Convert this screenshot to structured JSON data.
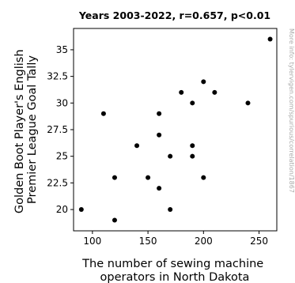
{
  "chart_data": {
    "type": "scatter",
    "title": "Years 2003-2022, r=0.657, p<0.01",
    "xlabel_lines": [
      "The number of sewing machine",
      "operators in North Dakota"
    ],
    "ylabel_lines": [
      "Golden Boot Player's English",
      "Premier League Goal Tally"
    ],
    "xlim": [
      83,
      266
    ],
    "ylim": [
      18,
      37
    ],
    "xticks": [
      100,
      150,
      200,
      250
    ],
    "xtick_labels": [
      "100",
      "150",
      "200",
      "250"
    ],
    "yticks": [
      20,
      22.5,
      25,
      27.5,
      30,
      32.5,
      35
    ],
    "ytick_labels": [
      "20",
      "22.5",
      "25",
      "27.5",
      "30",
      "32.5",
      "35"
    ],
    "grid": false,
    "points": [
      {
        "x": 90,
        "y": 20
      },
      {
        "x": 110,
        "y": 29
      },
      {
        "x": 120,
        "y": 23
      },
      {
        "x": 120,
        "y": 19
      },
      {
        "x": 140,
        "y": 26
      },
      {
        "x": 150,
        "y": 23
      },
      {
        "x": 160,
        "y": 29
      },
      {
        "x": 160,
        "y": 27
      },
      {
        "x": 160,
        "y": 22
      },
      {
        "x": 170,
        "y": 25
      },
      {
        "x": 170,
        "y": 20
      },
      {
        "x": 180,
        "y": 31
      },
      {
        "x": 190,
        "y": 30
      },
      {
        "x": 190,
        "y": 26
      },
      {
        "x": 190,
        "y": 25
      },
      {
        "x": 200,
        "y": 32
      },
      {
        "x": 200,
        "y": 23
      },
      {
        "x": 210,
        "y": 31
      },
      {
        "x": 240,
        "y": 30
      },
      {
        "x": 260,
        "y": 36
      }
    ],
    "marker_color": "#000000"
  },
  "watermark": "More info: tylervigen.com/spurious/correlation/1867"
}
